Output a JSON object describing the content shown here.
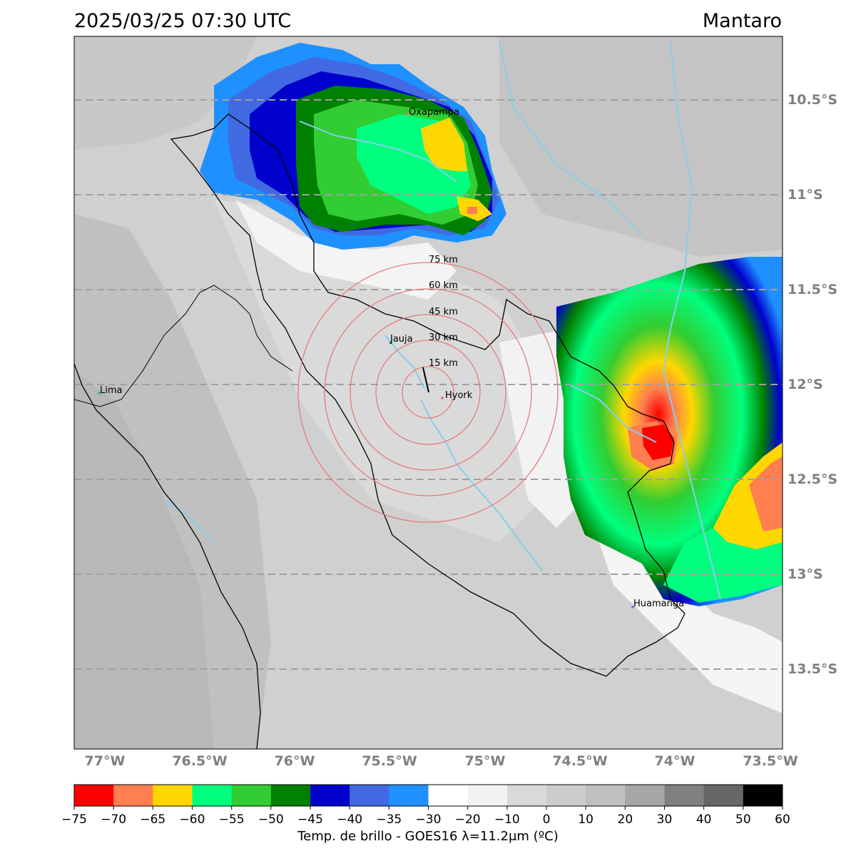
{
  "header": {
    "datetime": "2025/03/25 07:30 UTC",
    "region": "Mantaro"
  },
  "map": {
    "lat_labels": [
      "10.5°S",
      "11°S",
      "11.5°S",
      "12°S",
      "12.5°S",
      "13°S",
      "13.5°S"
    ],
    "lon_labels": [
      "77°W",
      "76.5°W",
      "76°W",
      "75.5°W",
      "75°W",
      "74.5°W",
      "74°W",
      "73.5°W"
    ],
    "center": {
      "lat": -12.04,
      "lon": -75.3
    },
    "range_rings_km": [
      15,
      30,
      45,
      60,
      75
    ],
    "range_ring_labels": [
      "15 km",
      "30 km",
      "45 km",
      "60 km",
      "75 km"
    ],
    "places": [
      {
        "name": "Oxapampa",
        "lon": -75.39,
        "lat": -10.58
      },
      {
        "name": "Jauja",
        "lon": -75.48,
        "lat": -11.78
      },
      {
        "name": "Hyork",
        "lon": -75.21,
        "lat": -12.07
      },
      {
        "name": "Lima",
        "lon": -77.03,
        "lat": -12.05
      },
      {
        "name": "Huamanga",
        "lon": -74.22,
        "lat": -13.16
      }
    ],
    "colors": {
      "ring": "#e87a7a",
      "river": "#87ceeb",
      "gridline": "#a0a0a0",
      "boundary": "#000000"
    }
  },
  "colorbar": {
    "label": "Temp. de brillo - GOES16 λ=11.2μm (ºC)",
    "ticks": [
      "−75",
      "−70",
      "−65",
      "−60",
      "−55",
      "−50",
      "−45",
      "−40",
      "−35",
      "−30",
      "−20",
      "−10",
      "0",
      "10",
      "20",
      "30",
      "40",
      "50",
      "60"
    ],
    "colors": [
      "#ff0000",
      "#ff7f50",
      "#ffd700",
      "#00ff7f",
      "#32cd32",
      "#008000",
      "#0000cd",
      "#4169e1",
      "#1e90ff",
      "#ffffff",
      "#f2f2f2",
      "#d9d9d9",
      "#cccccc",
      "#bfbfbf",
      "#a6a6a6",
      "#808080",
      "#666666",
      "#000000"
    ]
  }
}
